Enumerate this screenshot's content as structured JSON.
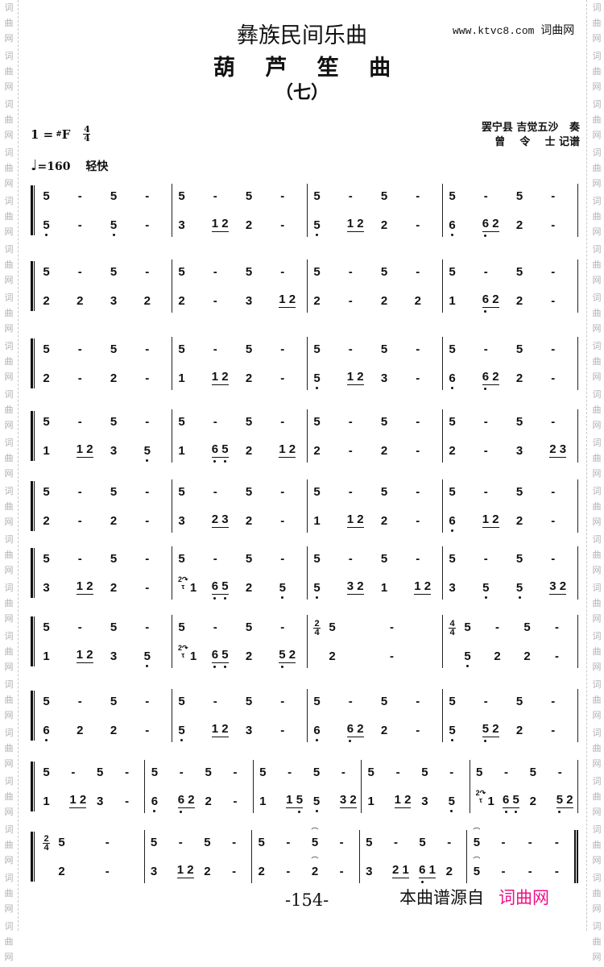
{
  "side_watermark": "词曲网",
  "header": {
    "category": "彝族民间乐曲",
    "title": "葫 芦 笙 曲",
    "number": "（七）",
    "site_url": "www.ktvc8.com",
    "site_name": "词曲网"
  },
  "key": {
    "tonic": "1 =",
    "sharp": "#",
    "note": "F",
    "time_num": "4",
    "time_den": "4"
  },
  "tempo": {
    "note": "♩",
    "bpm": "=160",
    "marking": "轻快"
  },
  "credits": {
    "performer": "罢宁县 吉觉五沙   奏",
    "transcriber": "曾    令    士 记谱"
  },
  "systems": [
    {
      "measures": [
        {
          "top": [
            "5",
            "-",
            "5",
            "-"
          ],
          "bot": [
            "5,",
            "-",
            "5,",
            "-"
          ]
        },
        {
          "top": [
            "5",
            "-",
            "5",
            "-"
          ],
          "bot": [
            "3",
            "_1 2",
            "2",
            "-"
          ]
        },
        {
          "top": [
            "5",
            "-",
            "5",
            "-"
          ],
          "bot": [
            "5,",
            "_1 2",
            "2",
            "-"
          ]
        },
        {
          "top": [
            "5",
            "-",
            "5",
            "-"
          ],
          "bot": [
            "6,",
            "_6, 2",
            "2",
            "-"
          ]
        }
      ]
    },
    {
      "measures": [
        {
          "top": [
            "5",
            "-",
            "5",
            "-"
          ],
          "bot": [
            "2",
            "2",
            "3",
            "2"
          ]
        },
        {
          "top": [
            "5",
            "-",
            "5",
            "-"
          ],
          "bot": [
            "2",
            "-",
            "3",
            "_1 2"
          ]
        },
        {
          "top": [
            "5",
            "-",
            "5",
            "-"
          ],
          "bot": [
            "2",
            "-",
            "2",
            "2"
          ]
        },
        {
          "top": [
            "5",
            "-",
            "5",
            "-"
          ],
          "bot": [
            "1",
            "_6, 2",
            "2",
            "-"
          ]
        }
      ]
    },
    {
      "measures": [
        {
          "top": [
            "5",
            "-",
            "5",
            "-"
          ],
          "bot": [
            "2",
            "-",
            "2",
            "-"
          ]
        },
        {
          "top": [
            "5",
            "-",
            "5",
            "-"
          ],
          "bot": [
            "1",
            "_1 2",
            "2",
            "-"
          ]
        },
        {
          "top": [
            "5",
            "-",
            "5",
            "-"
          ],
          "bot": [
            "5,",
            "_1 2",
            "3",
            "-"
          ]
        },
        {
          "top": [
            "5",
            "-",
            "5",
            "-"
          ],
          "bot": [
            "6,",
            "_6, 2",
            "2",
            "-"
          ]
        }
      ]
    },
    {
      "measures": [
        {
          "top": [
            "5",
            "-",
            "5",
            "-"
          ],
          "bot": [
            "1",
            "_1 2",
            "3",
            "5,"
          ]
        },
        {
          "top": [
            "5",
            "-",
            "5",
            "-"
          ],
          "bot": [
            "1",
            "_6, 5,",
            "2",
            "_1 2"
          ]
        },
        {
          "top": [
            "5",
            "-",
            "5",
            "-"
          ],
          "bot": [
            "2",
            "-",
            "2",
            "-"
          ]
        },
        {
          "top": [
            "5",
            "-",
            "5",
            "-"
          ],
          "bot": [
            "2",
            "-",
            "3",
            "_2 3"
          ]
        }
      ]
    },
    {
      "measures": [
        {
          "top": [
            "5",
            "-",
            "5",
            "-"
          ],
          "bot": [
            "2",
            "-",
            "2",
            "-"
          ]
        },
        {
          "top": [
            "5",
            "-",
            "5",
            "-"
          ],
          "bot": [
            "3",
            "_2 3",
            "2",
            "-"
          ]
        },
        {
          "top": [
            "5",
            "-",
            "5",
            "-"
          ],
          "bot": [
            "1",
            "_1 2",
            "2",
            "-"
          ]
        },
        {
          "top": [
            "5",
            "-",
            "5",
            "-"
          ],
          "bot": [
            "6,",
            "_1 2",
            "2",
            "-"
          ]
        }
      ]
    },
    {
      "measures": [
        {
          "top": [
            "5",
            "-",
            "5",
            "-"
          ],
          "bot": [
            "3",
            "_1 2",
            "2",
            "-"
          ]
        },
        {
          "top": [
            "5",
            "-",
            "5",
            "-"
          ],
          "bot": [
            "1",
            "_6, 5,",
            "2",
            "5,"
          ],
          "ornament": "2"
        },
        {
          "top": [
            "5",
            "-",
            "5",
            "-"
          ],
          "bot": [
            "5,",
            "_3 2",
            "1",
            "_1 2"
          ]
        },
        {
          "top": [
            "5",
            "-",
            "5",
            "-"
          ],
          "bot": [
            "3",
            "5,",
            "5,",
            "_3 2"
          ]
        }
      ]
    },
    {
      "measures": [
        {
          "top": [
            "5",
            "-",
            "5",
            "-"
          ],
          "bot": [
            "1",
            "_1 2",
            "3",
            "5,"
          ]
        },
        {
          "top": [
            "5",
            "-",
            "5",
            "-"
          ],
          "bot": [
            "1",
            "_6, 5,",
            "2",
            "_5, 2"
          ],
          "ornament": "2"
        },
        {
          "top": [
            "5",
            "-"
          ],
          "bot": [
            "2",
            "-"
          ],
          "time": [
            "2",
            "4"
          ]
        },
        {
          "top": [
            "5",
            "-",
            "5",
            "-"
          ],
          "bot": [
            "5,",
            "2",
            "2",
            "-"
          ],
          "time": [
            "4",
            "4"
          ]
        }
      ]
    },
    {
      "measures": [
        {
          "top": [
            "5",
            "-",
            "5",
            "-"
          ],
          "bot": [
            "6,",
            "2",
            "2",
            "-"
          ]
        },
        {
          "top": [
            "5",
            "-",
            "5",
            "-"
          ],
          "bot": [
            "5,",
            "_1 2",
            "3",
            "-"
          ]
        },
        {
          "top": [
            "5",
            "-",
            "5",
            "-"
          ],
          "bot": [
            "6,",
            "_6, 2",
            "2",
            "-"
          ]
        },
        {
          "top": [
            "5",
            "-",
            "5",
            "-"
          ],
          "bot": [
            "5,",
            "_5, 2",
            "2",
            "-"
          ]
        }
      ]
    },
    {
      "measures": [
        {
          "top": [
            "5",
            "-",
            "5",
            "-"
          ],
          "bot": [
            "1",
            "_1 2",
            "3",
            "-"
          ]
        },
        {
          "top": [
            "5",
            "-",
            "5",
            "-"
          ],
          "bot": [
            "6,",
            "_6, 2",
            "2",
            "-"
          ]
        },
        {
          "top": [
            "5",
            "-",
            "5",
            "-"
          ],
          "bot": [
            "1",
            "_1 5,",
            "5,",
            "_3 2"
          ]
        },
        {
          "top": [
            "5",
            "-",
            "5",
            "-"
          ],
          "bot": [
            "1",
            "_1 2",
            "3",
            "5,"
          ]
        },
        {
          "top": [
            "5",
            "-",
            "5",
            "-"
          ],
          "bot": [
            "1",
            "_6, 5,",
            "2",
            "_5, 2"
          ],
          "ornament": "2"
        }
      ]
    },
    {
      "measures": [
        {
          "top": [
            "5",
            "-"
          ],
          "bot": [
            "2",
            "-"
          ],
          "time": [
            "2",
            "4"
          ]
        },
        {
          "top": [
            "5",
            "-",
            "5",
            "-"
          ],
          "bot": [
            "3",
            "_1 2",
            "2",
            "-"
          ]
        },
        {
          "top": [
            "5",
            "-",
            "^5",
            "-"
          ],
          "bot": [
            "2",
            "-",
            "^2",
            "-"
          ]
        },
        {
          "top": [
            "5",
            "-",
            "5",
            "-"
          ],
          "bot": [
            "3",
            "_2 1",
            "_6, 1",
            "2"
          ]
        },
        {
          "top": [
            "^5",
            "-",
            "-",
            "-"
          ],
          "bot": [
            "^5",
            "-",
            "-",
            "-"
          ],
          "final": true
        }
      ]
    }
  ],
  "footer": {
    "page_number": "-154-",
    "source_label": "本曲谱源自",
    "source_brand": "词曲网",
    "brand_color": "#ee1188"
  }
}
